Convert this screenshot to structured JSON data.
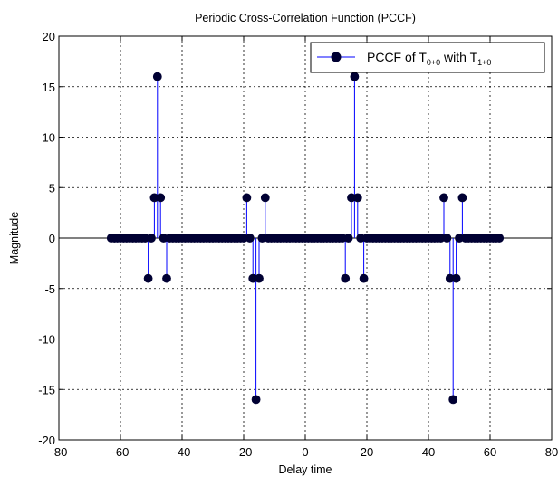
{
  "chart_data": {
    "type": "stem",
    "title": "Periodic Cross-Correlation Function (PCCF)",
    "xlabel": "Delay time",
    "ylabel": "Magnitude",
    "xlim": [
      -80,
      80
    ],
    "ylim": [
      -20,
      20
    ],
    "xticks": [
      -80,
      -60,
      -40,
      -20,
      0,
      20,
      40,
      60,
      80
    ],
    "yticks": [
      -20,
      -15,
      -10,
      -5,
      0,
      5,
      10,
      15,
      20
    ],
    "grid": true,
    "legend_position": "top-right",
    "legend": {
      "prefix": "PCCF of T",
      "sub1": "0+0",
      "middle": " with T",
      "sub2": "1+0"
    },
    "series_color": "#0000ff",
    "marker_color": "#000033",
    "x_range": [
      -63,
      63
    ],
    "nonzero": [
      {
        "x": -51,
        "y": -4
      },
      {
        "x": -49,
        "y": 4
      },
      {
        "x": -48,
        "y": 16
      },
      {
        "x": -47,
        "y": 4
      },
      {
        "x": -45,
        "y": -4
      },
      {
        "x": -19,
        "y": 4
      },
      {
        "x": -17,
        "y": -4
      },
      {
        "x": -16,
        "y": -16
      },
      {
        "x": -15,
        "y": -4
      },
      {
        "x": -13,
        "y": 4
      },
      {
        "x": 13,
        "y": -4
      },
      {
        "x": 15,
        "y": 4
      },
      {
        "x": 16,
        "y": 16
      },
      {
        "x": 17,
        "y": 4
      },
      {
        "x": 19,
        "y": -4
      },
      {
        "x": 45,
        "y": 4
      },
      {
        "x": 47,
        "y": -4
      },
      {
        "x": 48,
        "y": -16
      },
      {
        "x": 49,
        "y": -4
      },
      {
        "x": 51,
        "y": 4
      }
    ]
  }
}
